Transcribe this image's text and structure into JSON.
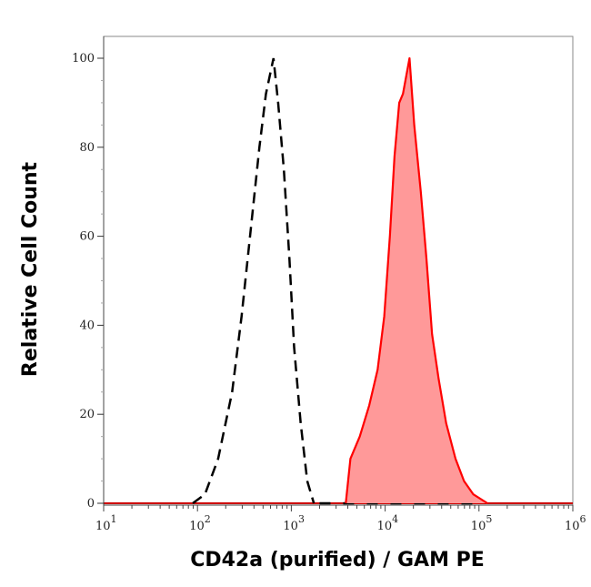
{
  "chart_data": {
    "type": "area",
    "title": "",
    "xlabel": "CD42a (purified) / GAM PE",
    "ylabel": "Relative Cell Count",
    "x_scale": "log",
    "xlim": [
      10,
      1000000
    ],
    "ylim": [
      0,
      100
    ],
    "x_ticks": [
      {
        "base": "10",
        "exp": "1"
      },
      {
        "base": "10",
        "exp": "2"
      },
      {
        "base": "10",
        "exp": "3"
      },
      {
        "base": "10",
        "exp": "4"
      },
      {
        "base": "10",
        "exp": "5"
      },
      {
        "base": "10",
        "exp": "6"
      }
    ],
    "y_ticks": [
      "0",
      "20",
      "40",
      "60",
      "80",
      "100"
    ],
    "grid": false,
    "series": [
      {
        "style": "dashed-line",
        "color": "#000000",
        "x": [
          89,
          120,
          166,
          234,
          295,
          363,
          457,
          537,
          646,
          724,
          832,
          955,
          1072,
          1259,
          1479,
          1738
        ],
        "y": [
          0,
          2,
          10,
          25,
          42,
          60,
          80,
          92,
          100,
          90,
          75,
          55,
          35,
          18,
          5,
          0
        ]
      },
      {
        "style": "filled",
        "color": "#ff0000",
        "fill": "#ff9999",
        "x": [
          3802,
          4266,
          5370,
          6761,
          8318,
          9772,
          11220,
          12589,
          14125,
          15488,
          18197,
          20417,
          23988,
          27542,
          31623,
          37154,
          44668,
          56234,
          69183,
          87096,
          123027
        ],
        "y": [
          0,
          10,
          15,
          22,
          30,
          42,
          60,
          78,
          90,
          92,
          100,
          85,
          70,
          55,
          38,
          28,
          18,
          10,
          5,
          2,
          0
        ]
      }
    ]
  }
}
